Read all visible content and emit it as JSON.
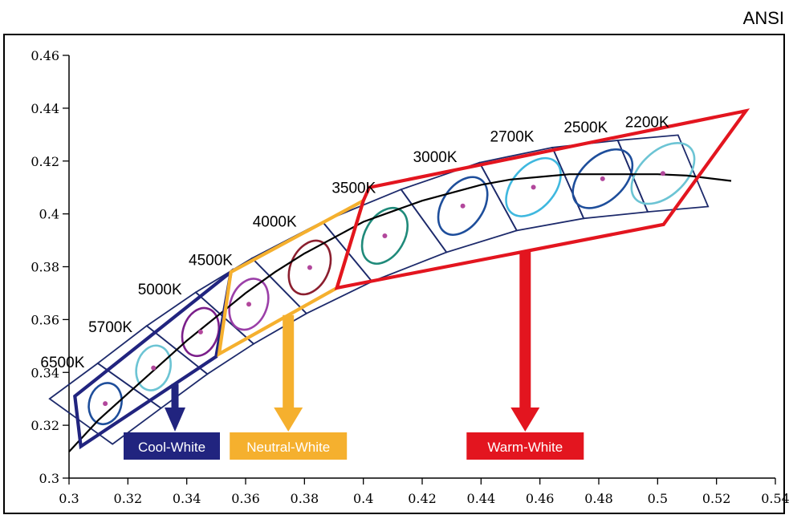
{
  "chart_data": {
    "type": "scatter",
    "title": "ANSI",
    "xlabel": "",
    "ylabel": "",
    "xlim": [
      0.3,
      0.54
    ],
    "ylim": [
      0.3,
      0.46
    ],
    "x_ticks": [
      0.3,
      0.32,
      0.34,
      0.36,
      0.38,
      0.4,
      0.42,
      0.44,
      0.46,
      0.48,
      0.5,
      0.52,
      0.54
    ],
    "x_tick_labels": [
      "0.3",
      "0.32",
      "0.34",
      "0.36",
      "0.38",
      "0.4",
      "0.42",
      "0.44",
      "0.46",
      "0.48",
      "0.5",
      "0.52",
      "0.54"
    ],
    "y_ticks": [
      0.3,
      0.32,
      0.34,
      0.36,
      0.38,
      0.4,
      0.42,
      0.44,
      0.46
    ],
    "y_tick_labels": [
      "0.3",
      "0.32",
      "0.34",
      "0.36",
      "0.38",
      "0.4",
      "0.42",
      "0.44",
      "0.46"
    ],
    "grid": false,
    "planckian_locus": [
      [
        0.3,
        0.31
      ],
      [
        0.31,
        0.322
      ],
      [
        0.32,
        0.332
      ],
      [
        0.33,
        0.342
      ],
      [
        0.34,
        0.352
      ],
      [
        0.35,
        0.361
      ],
      [
        0.36,
        0.37
      ],
      [
        0.37,
        0.378
      ],
      [
        0.38,
        0.385
      ],
      [
        0.39,
        0.391
      ],
      [
        0.4,
        0.397
      ],
      [
        0.41,
        0.401
      ],
      [
        0.42,
        0.405
      ],
      [
        0.43,
        0.408
      ],
      [
        0.44,
        0.411
      ],
      [
        0.45,
        0.413
      ],
      [
        0.46,
        0.414
      ],
      [
        0.47,
        0.415
      ],
      [
        0.48,
        0.415
      ],
      [
        0.49,
        0.415
      ],
      [
        0.5,
        0.415
      ],
      [
        0.51,
        0.4145
      ],
      [
        0.525,
        0.4125
      ]
    ],
    "cct_points": [
      {
        "label": "6500K",
        "x": 0.3123,
        "y": 0.3282,
        "color": "#1e4e9b"
      },
      {
        "label": "5700K",
        "x": 0.3287,
        "y": 0.3417,
        "color": "#6cc4d4"
      },
      {
        "label": "5000K",
        "x": 0.3447,
        "y": 0.3553,
        "color": "#7b1f8a"
      },
      {
        "label": "4500K",
        "x": 0.3611,
        "y": 0.3658,
        "color": "#9b3fa8"
      },
      {
        "label": "4000K",
        "x": 0.3818,
        "y": 0.3797,
        "color": "#8b1e2e"
      },
      {
        "label": "3500K",
        "x": 0.4073,
        "y": 0.3917,
        "color": "#1f8a7a"
      },
      {
        "label": "3000K",
        "x": 0.4338,
        "y": 0.403,
        "color": "#1e4e9b"
      },
      {
        "label": "2700K",
        "x": 0.4578,
        "y": 0.4101,
        "color": "#3fb8df"
      },
      {
        "label": "2500K",
        "x": 0.4813,
        "y": 0.4133,
        "color": "#1e4e9b"
      },
      {
        "label": "2200K",
        "x": 0.5018,
        "y": 0.4153,
        "color": "#6cc4d4"
      }
    ],
    "groups": [
      {
        "label": "Cool-White",
        "color": "#21247f",
        "arrow_x": 0.336,
        "polygon": [
          [
            0.302,
            0.331
          ],
          [
            0.355,
            0.378
          ],
          [
            0.35,
            0.346
          ],
          [
            0.304,
            0.312
          ]
        ]
      },
      {
        "label": "Neutral-White",
        "color": "#f5b02e",
        "arrow_x": 0.3745,
        "polygon": [
          [
            0.355,
            0.378
          ],
          [
            0.4,
            0.405
          ],
          [
            0.391,
            0.372
          ],
          [
            0.351,
            0.347
          ]
        ]
      },
      {
        "label": "Warm-White",
        "color": "#e3151f",
        "arrow_x": 0.455,
        "polygon": [
          [
            0.4,
            0.405
          ],
          [
            0.402,
            0.41
          ],
          [
            0.53,
            0.439
          ],
          [
            0.502,
            0.396
          ],
          [
            0.391,
            0.372
          ]
        ]
      }
    ],
    "annotations": [
      "6500K",
      "5700K",
      "5000K",
      "4500K",
      "4000K",
      "3500K",
      "3000K",
      "2700K",
      "2500K",
      "2200K",
      "Cool-White",
      "Neutral-White",
      "Warm-White"
    ]
  }
}
